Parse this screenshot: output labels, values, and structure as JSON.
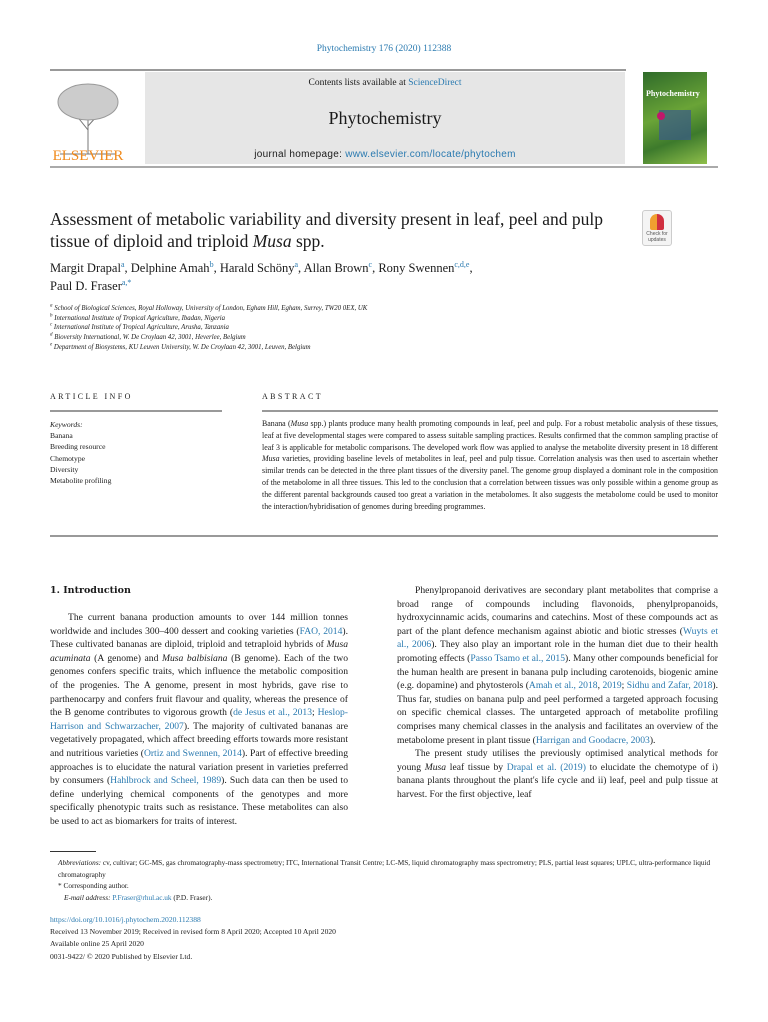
{
  "header": {
    "journal_ref": "Phytochemistry 176 (2020) 112388",
    "contents_prefix": "Contents lists available at ",
    "contents_link": "ScienceDirect",
    "journal_title": "Phytochemistry",
    "homepage_prefix": "journal homepage: ",
    "homepage_link": "www.elsevier.com/locate/phytochem",
    "publisher_logo": "ELSEVIER",
    "cover_title": "Phytochemistry"
  },
  "crossmark": {
    "label": "Check for updates",
    "icon": "crossmark-icon"
  },
  "article": {
    "title_part1": "Assessment of metabolic variability and diversity present in leaf, peel and pulp tissue of diploid and triploid ",
    "title_italic": "Musa",
    "title_part2": " spp.",
    "authors": [
      {
        "name": "Margit Drapal",
        "sup": "a",
        "sep": ", "
      },
      {
        "name": "Delphine Amah",
        "sup": "b",
        "sep": ", "
      },
      {
        "name": "Harald Schöny",
        "sup": "a",
        "sep": ", "
      },
      {
        "name": "Allan Brown",
        "sup": "c",
        "sep": ", "
      },
      {
        "name": "Rony Swennen",
        "sup": "c,d,e",
        "sep": ","
      },
      {
        "name": "Paul D. Fraser",
        "sup": "a,*",
        "sep": ""
      }
    ],
    "affiliations": [
      {
        "sup": "a",
        "text": "School of Biological Sciences, Royal Holloway, University of London, Egham Hill, Egham, Surrey, TW20 0EX, UK"
      },
      {
        "sup": "b",
        "text": "International Institute of Tropical Agriculture, Ibadan, Nigeria"
      },
      {
        "sup": "c",
        "text": "International Institute of Tropical Agriculture, Arusha, Tanzania"
      },
      {
        "sup": "d",
        "text": "Bioversity International, W. De Croylaan 42, 3001, Heverlee, Belgium"
      },
      {
        "sup": "e",
        "text": "Department of Biosystems, KU Leuven University, W. De Croylaan 42, 3001, Leuven, Belgium"
      }
    ]
  },
  "article_info": {
    "heading": "ARTICLE INFO",
    "keywords_label": "Keywords:",
    "keywords": [
      "Banana",
      "Breeding resource",
      "Chemotype",
      "Diversity",
      "Metabolite profiling"
    ]
  },
  "abstract": {
    "heading": "ABSTRACT",
    "segments": [
      {
        "t": "Banana ("
      },
      {
        "t": "Musa",
        "i": true
      },
      {
        "t": " spp.) plants produce many health promoting compounds in leaf, peel and pulp. For a robust metabolic analysis of these tissues, leaf at five developmental stages were compared to assess suitable sampling practices. Results confirmed that the common sampling practise of leaf 3 is applicable for metabolic compar­isons. The developed work flow was applied to analyse the metabolite diversity present in 18 different "
      },
      {
        "t": "Musa",
        "i": true
      },
      {
        "t": " varieties, providing baseline levels of metabolites in leaf, peel and pulp tissue. Correlation analysis was then used to ascertain whether similar trends can be detected in the three plant tissues of the diversity panel. The genome group displayed a dominant role in the composition of the metabolome in all three tissues. This led to the conclusion that a correlation between tissues was only possible within a genome group as the different parental backgrounds caused too great a variation in the metabolomes. It also suggests the metabolome could be used to monitor the interaction/hybridisation of genomes during breeding programmes."
      }
    ]
  },
  "introduction": {
    "heading": "1.  Introduction",
    "left_paragraphs": [
      [
        {
          "t": "The current banana production amounts to over 144 million tonnes worldwide and includes 300–400 dessert and cooking varieties ("
        },
        {
          "t": "FAO, 2014",
          "l": true
        },
        {
          "t": "). These cultivated bananas are diploid, triploid and tetraploid hybrids of "
        },
        {
          "t": "Musa acuminata",
          "i": true
        },
        {
          "t": " (A genome) and "
        },
        {
          "t": "Musa balbisiana",
          "i": true
        },
        {
          "t": " (B genome). Each of the two genomes confers specific traits, which influence the metabolic com­position of the progenies. The A genome, present in most hybrids, gave rise to parthenocarpy and confers fruit flavour and quality, whereas the pre­sence of the B genome contributes to vigorous growth ("
        },
        {
          "t": "de Jesus et al., 2013",
          "l": true
        },
        {
          "t": "; "
        },
        {
          "t": "Heslop-Harrison and Schwarzacher, 2007",
          "l": true
        },
        {
          "t": "). The majority of cultivated ba­nanas are vegetatively propagated, which affect breeding efforts towards more resistant and nutritious varieties ("
        },
        {
          "t": "Ortiz and Swennen, 2014",
          "l": true
        },
        {
          "t": "). Part of effective breeding approaches is to elucidate the natural variation present in varieties preferred by consumers ("
        },
        {
          "t": "Hahlbrock and Scheel, 1989",
          "l": true
        },
        {
          "t": "). Such data can then be used to define underlying chemical components of the geno­types and more specifically phenotypic traits such as resistance. These metabolites can also be used to act as biomarkers for traits of interest."
        }
      ]
    ],
    "right_paragraphs": [
      [
        {
          "t": "Phenylpropanoid derivatives are secondary plant metabolites that comprise a broad range of compounds including flavonoids, phenyl­propanoids, hydroxycinnamic acids, coumarins and catechins. Most of these compounds act as part of the plant defence mechanism against abiotic and biotic stresses ("
        },
        {
          "t": "Wuyts et al., 2006",
          "l": true
        },
        {
          "t": "). They also play an im­portant role in the human diet due to their health promoting effects ("
        },
        {
          "t": "Passo Tsamo et al., 2015",
          "l": true
        },
        {
          "t": "). Many other compounds beneficial for the human health are present in banana pulp including carotenoids, bio­genic amine (e.g. dopamine) and phytosterols ("
        },
        {
          "t": "Amah et al., 2018",
          "l": true
        },
        {
          "t": ", "
        },
        {
          "t": "2019",
          "l": true
        },
        {
          "t": "; "
        },
        {
          "t": "Sidhu and Zafar, 2018",
          "l": true
        },
        {
          "t": "). Thus far, studies on banana pulp and peel performed a targeted approach focusing on specific chemical classes. The untargeted approach of metabolite profiling comprises many che­mical classes in the analysis and facilitates an overview of the meta­bolome present in plant tissue ("
        },
        {
          "t": "Harrigan and Goodacre, 2003",
          "l": true
        },
        {
          "t": ")."
        }
      ],
      [
        {
          "t": "The present study utilises the previously optimised analytical methods for young "
        },
        {
          "t": "Musa",
          "i": true
        },
        {
          "t": " leaf tissue by "
        },
        {
          "t": "Drapal et al. (2019)",
          "l": true
        },
        {
          "t": " to elucidate the chemotype of i) banana plants throughout the plant's life cycle and ii) leaf, peel and pulp tissue at harvest. For the first objective, leaf"
        }
      ]
    ]
  },
  "footnotes": {
    "abbrev_label": "Abbreviations:",
    "abbrev_text": " cv, cultivar; GC-MS, gas chromatography-mass spectrometry; ITC, International Transit Centre; LC-MS, liquid chromatography mass spectrometry; PLS, partial least squares; UPLC, ultra-performance liquid chromatography",
    "corresponding": "* Corresponding author.",
    "email_label": "E-mail address: ",
    "email": "P.Fraser@rhul.ac.uk",
    "email_suffix": " (P.D. Fraser)."
  },
  "publication": {
    "doi": "https://doi.org/10.1016/j.phytochem.2020.112388",
    "received": "Received 13 November 2019; Received in revised form 8 April 2020; Accepted 10 April 2020",
    "online": "Available online 25 April 2020",
    "copyright": "0031-9422/ © 2020 Published by Elsevier Ltd."
  },
  "colors": {
    "link": "#2a7ab0",
    "elsevier_orange": "#f08a1c",
    "header_box": "#e6e6e6"
  }
}
